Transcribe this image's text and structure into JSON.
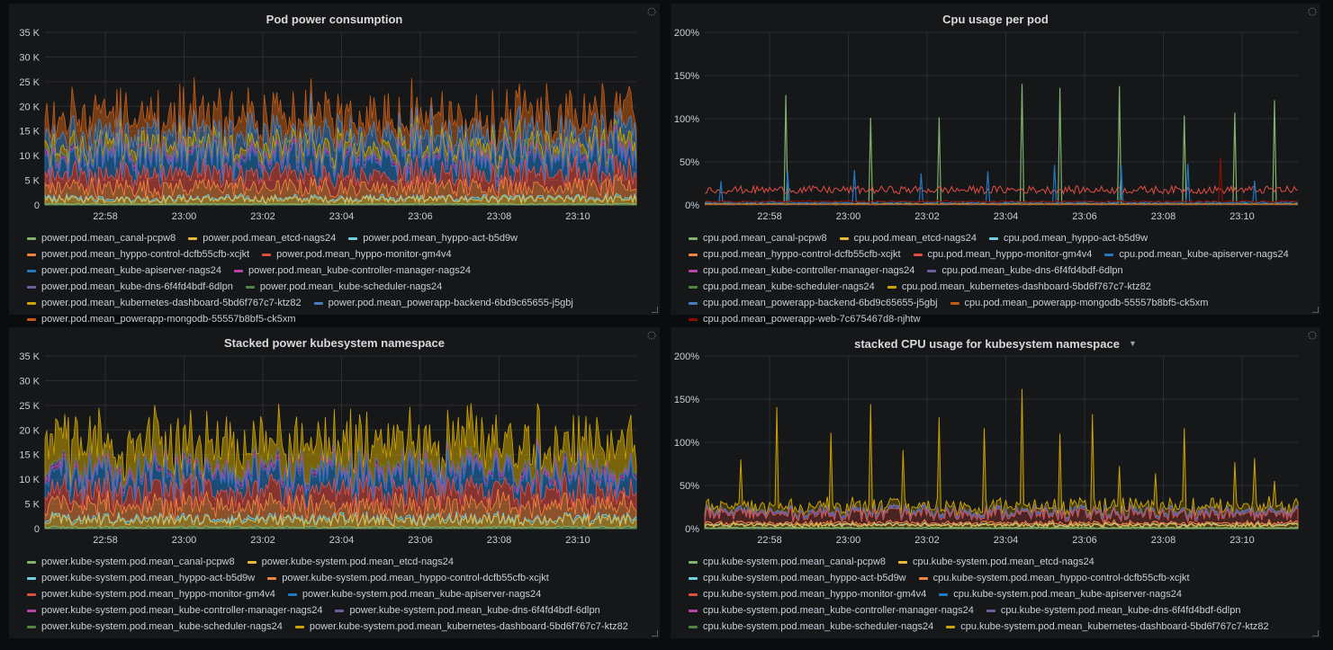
{
  "colors": {
    "green": "#7eb26d",
    "yellow": "#eab839",
    "cyan": "#6ed0e0",
    "orange": "#ef843c",
    "red": "#e24d42",
    "blue": "#1f78c1",
    "purple": "#ba43a9",
    "violet": "#705da0",
    "darkgreen": "#508642",
    "ochre": "#cca300",
    "darkblue": "#447ebc",
    "darkorange": "#c15c17",
    "darkred": "#890f02",
    "grid": "#2b2d31"
  },
  "panels": [
    {
      "id": "pod-power",
      "title": "Pod power consumption",
      "chart_data": {
        "type": "area",
        "stacked": true,
        "x_ticks": [
          "22:58",
          "23:00",
          "23:02",
          "23:04",
          "23:06",
          "23:08",
          "23:10"
        ],
        "y_ticks": [
          "0",
          "5 K",
          "10 K",
          "15 K",
          "20 K",
          "25 K",
          "30 K",
          "35 K"
        ],
        "ylim": [
          0,
          35000
        ],
        "grid": true,
        "legend_placement": "bottom",
        "series": [
          {
            "name": "power.pod.mean_canal-pcpw8",
            "color": "#7eb26d"
          },
          {
            "name": "power.pod.mean_etcd-nags24",
            "color": "#eab839"
          },
          {
            "name": "power.pod.mean_hyppo-act-b5d9w",
            "color": "#6ed0e0"
          },
          {
            "name": "power.pod.mean_hyppo-control-dcfb55cfb-xcjkt",
            "color": "#ef843c"
          },
          {
            "name": "power.pod.mean_hyppo-monitor-gm4v4",
            "color": "#e24d42"
          },
          {
            "name": "power.pod.mean_kube-apiserver-nags24",
            "color": "#1f78c1"
          },
          {
            "name": "power.pod.mean_kube-controller-manager-nags24",
            "color": "#ba43a9"
          },
          {
            "name": "power.pod.mean_kube-dns-6f4fd4bdf-6dlpn",
            "color": "#705da0"
          },
          {
            "name": "power.pod.mean_kube-scheduler-nags24",
            "color": "#508642"
          },
          {
            "name": "power.pod.mean_kubernetes-dashboard-5bd6f767c7-ktz82",
            "color": "#cca300"
          },
          {
            "name": "power.pod.mean_powerapp-backend-6bd9c65655-j5gbj",
            "color": "#447ebc"
          },
          {
            "name": "power.pod.mean_powerapp-mongodb-55557b8bf5-ck5xm",
            "color": "#c15c17"
          }
        ]
      }
    },
    {
      "id": "cpu-per-pod",
      "title": "Cpu usage per pod",
      "chart_data": {
        "type": "line",
        "x_ticks": [
          "22:58",
          "23:00",
          "23:02",
          "23:04",
          "23:06",
          "23:08",
          "23:10"
        ],
        "y_ticks": [
          "0%",
          "50%",
          "100%",
          "150%",
          "200%"
        ],
        "ylim": [
          0,
          200
        ],
        "grid": true,
        "legend_placement": "bottom",
        "series": [
          {
            "name": "cpu.pod.mean_canal-pcpw8",
            "color": "#7eb26d"
          },
          {
            "name": "cpu.pod.mean_etcd-nags24",
            "color": "#eab839"
          },
          {
            "name": "cpu.pod.mean_hyppo-act-b5d9w",
            "color": "#6ed0e0"
          },
          {
            "name": "cpu.pod.mean_hyppo-control-dcfb55cfb-xcjkt",
            "color": "#ef843c"
          },
          {
            "name": "cpu.pod.mean_hyppo-monitor-gm4v4",
            "color": "#e24d42"
          },
          {
            "name": "cpu.pod.mean_kube-apiserver-nags24",
            "color": "#1f78c1"
          },
          {
            "name": "cpu.pod.mean_kube-controller-manager-nags24",
            "color": "#ba43a9"
          },
          {
            "name": "cpu.pod.mean_kube-dns-6f4fd4bdf-6dlpn",
            "color": "#705da0"
          },
          {
            "name": "cpu.pod.mean_kube-scheduler-nags24",
            "color": "#508642"
          },
          {
            "name": "cpu.pod.mean_kubernetes-dashboard-5bd6f767c7-ktz82",
            "color": "#cca300"
          },
          {
            "name": "cpu.pod.mean_powerapp-backend-6bd9c65655-j5gbj",
            "color": "#447ebc"
          },
          {
            "name": "cpu.pod.mean_powerapp-mongodb-55557b8bf5-ck5xm",
            "color": "#c15c17"
          },
          {
            "name": "cpu.pod.mean_powerapp-web-7c675467d8-njhtw",
            "color": "#890f02"
          }
        ]
      }
    },
    {
      "id": "stacked-power-kubesystem",
      "title": "Stacked power kubesystem namespace",
      "chart_data": {
        "type": "area",
        "stacked": true,
        "x_ticks": [
          "22:58",
          "23:00",
          "23:02",
          "23:04",
          "23:06",
          "23:08",
          "23:10"
        ],
        "y_ticks": [
          "0",
          "5 K",
          "10 K",
          "15 K",
          "20 K",
          "25 K",
          "30 K",
          "35 K"
        ],
        "ylim": [
          0,
          35000
        ],
        "grid": true,
        "legend_placement": "bottom",
        "series": [
          {
            "name": "power.kube-system.pod.mean_canal-pcpw8",
            "color": "#7eb26d"
          },
          {
            "name": "power.kube-system.pod.mean_etcd-nags24",
            "color": "#eab839"
          },
          {
            "name": "power.kube-system.pod.mean_hyppo-act-b5d9w",
            "color": "#6ed0e0"
          },
          {
            "name": "power.kube-system.pod.mean_hyppo-control-dcfb55cfb-xcjkt",
            "color": "#ef843c"
          },
          {
            "name": "power.kube-system.pod.mean_hyppo-monitor-gm4v4",
            "color": "#e24d42"
          },
          {
            "name": "power.kube-system.pod.mean_kube-apiserver-nags24",
            "color": "#1f78c1"
          },
          {
            "name": "power.kube-system.pod.mean_kube-controller-manager-nags24",
            "color": "#ba43a9"
          },
          {
            "name": "power.kube-system.pod.mean_kube-dns-6f4fd4bdf-6dlpn",
            "color": "#705da0"
          },
          {
            "name": "power.kube-system.pod.mean_kube-scheduler-nags24",
            "color": "#508642"
          },
          {
            "name": "power.kube-system.pod.mean_kubernetes-dashboard-5bd6f767c7-ktz82",
            "color": "#cca300"
          }
        ]
      }
    },
    {
      "id": "stacked-cpu-kubesystem",
      "title": "stacked CPU usage for kubesystem namespace",
      "has_menu": true,
      "chart_data": {
        "type": "area",
        "stacked": true,
        "x_ticks": [
          "22:58",
          "23:00",
          "23:02",
          "23:04",
          "23:06",
          "23:08",
          "23:10"
        ],
        "y_ticks": [
          "0%",
          "50%",
          "100%",
          "150%",
          "200%"
        ],
        "ylim": [
          0,
          200
        ],
        "grid": true,
        "legend_placement": "bottom",
        "series": [
          {
            "name": "cpu.kube-system.pod.mean_canal-pcpw8",
            "color": "#7eb26d"
          },
          {
            "name": "cpu.kube-system.pod.mean_etcd-nags24",
            "color": "#eab839"
          },
          {
            "name": "cpu.kube-system.pod.mean_hyppo-act-b5d9w",
            "color": "#6ed0e0"
          },
          {
            "name": "cpu.kube-system.pod.mean_hyppo-control-dcfb55cfb-xcjkt",
            "color": "#ef843c"
          },
          {
            "name": "cpu.kube-system.pod.mean_hyppo-monitor-gm4v4",
            "color": "#e24d42"
          },
          {
            "name": "cpu.kube-system.pod.mean_kube-apiserver-nags24",
            "color": "#1f78c1"
          },
          {
            "name": "cpu.kube-system.pod.mean_kube-controller-manager-nags24",
            "color": "#ba43a9"
          },
          {
            "name": "cpu.kube-system.pod.mean_kube-dns-6f4fd4bdf-6dlpn",
            "color": "#705da0"
          },
          {
            "name": "cpu.kube-system.pod.mean_kube-scheduler-nags24",
            "color": "#508642"
          },
          {
            "name": "cpu.kube-system.pod.mean_kubernetes-dashboard-5bd6f767c7-ktz82",
            "color": "#cca300"
          }
        ]
      }
    }
  ]
}
